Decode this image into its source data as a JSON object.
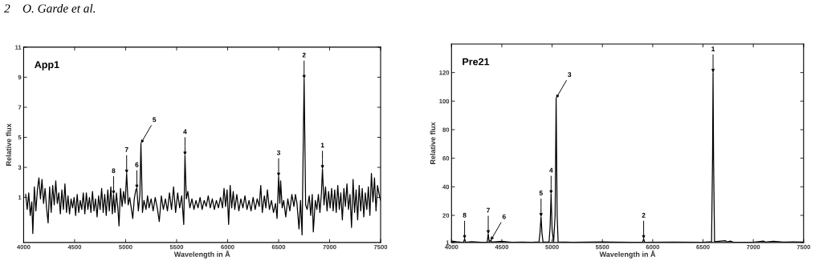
{
  "chart_data": [
    {
      "type": "line",
      "title": "App1",
      "xlabel": "Wavelength in Å",
      "ylabel": "Relative flux",
      "xlim": [
        4000,
        7500
      ],
      "ylim": [
        -2,
        11
      ],
      "xticks": [
        4000,
        4500,
        5000,
        5500,
        6000,
        6500,
        7000,
        7500
      ],
      "yticks": [
        1,
        3,
        5,
        7,
        9,
        11
      ],
      "x": [
        4020,
        4035,
        4050,
        4065,
        4080,
        4090,
        4105,
        4120,
        4135,
        4150,
        4165,
        4180,
        4195,
        4210,
        4225,
        4240,
        4255,
        4270,
        4285,
        4300,
        4315,
        4330,
        4345,
        4360,
        4375,
        4390,
        4405,
        4420,
        4435,
        4450,
        4465,
        4480,
        4495,
        4510,
        4525,
        4540,
        4555,
        4570,
        4585,
        4600,
        4615,
        4630,
        4645,
        4660,
        4675,
        4690,
        4705,
        4720,
        4735,
        4750,
        4765,
        4780,
        4795,
        4810,
        4825,
        4840,
        4855,
        4870,
        4882,
        4895,
        4910,
        4925,
        4935,
        4950,
        4965,
        4980,
        4995,
        5010,
        5025,
        5040,
        5055,
        5070,
        5085,
        5100,
        5110,
        5125,
        5140,
        5150,
        5165,
        5180,
        5200,
        5215,
        5230,
        5250,
        5270,
        5290,
        5310,
        5330,
        5350,
        5370,
        5390,
        5410,
        5430,
        5450,
        5470,
        5490,
        5510,
        5530,
        5550,
        5570,
        5582,
        5595,
        5610,
        5630,
        5650,
        5670,
        5690,
        5710,
        5730,
        5750,
        5770,
        5790,
        5810,
        5830,
        5850,
        5870,
        5890,
        5910,
        5930,
        5950,
        5965,
        5980,
        5995,
        6010,
        6025,
        6040,
        6055,
        6070,
        6090,
        6110,
        6130,
        6150,
        6170,
        6190,
        6210,
        6230,
        6250,
        6270,
        6290,
        6310,
        6325,
        6340,
        6360,
        6375,
        6390,
        6410,
        6430,
        6450,
        6470,
        6485,
        6500,
        6512,
        6520,
        6535,
        6550,
        6570,
        6590,
        6610,
        6630,
        6650,
        6665,
        6680,
        6700,
        6715,
        6730,
        6750,
        6765,
        6780,
        6800,
        6815,
        6830,
        6840,
        6860,
        6875,
        6890,
        6905,
        6920,
        6930,
        6945,
        6960,
        6975,
        6990,
        7005,
        7020,
        7035,
        7050,
        7065,
        7080,
        7095,
        7110,
        7125,
        7140,
        7155,
        7170,
        7185,
        7200,
        7215,
        7230,
        7245,
        7260,
        7275,
        7290,
        7305,
        7320,
        7335,
        7350,
        7365,
        7380,
        7395,
        7410,
        7425,
        7440,
        7455,
        7470,
        7485,
        7500
      ],
      "series": [
        {
          "color": "#000000",
          "values": [
            1.2,
            0.2,
            1.3,
            -0.2,
            0.7,
            -1.4,
            1.7,
            0.1,
            1.5,
            2.3,
            0.9,
            2.2,
            0.6,
            1.6,
            0.3,
            -0.7,
            1.7,
            0.0,
            1.8,
            0.5,
            2.1,
            0.6,
            1.3,
            -0.1,
            1.5,
            0.2,
            1.9,
            0.0,
            1.1,
            -0.1,
            0.9,
            0.3,
            1.0,
            -0.2,
            1.2,
            0.0,
            0.8,
            0.2,
            1.3,
            -0.1,
            1.3,
            0.2,
            1.0,
            0.0,
            1.4,
            0.1,
            0.9,
            -0.3,
            1.1,
            0.2,
            1.6,
            0.0,
            1.2,
            -0.2,
            1.5,
            0.1,
            1.7,
            -0.1,
            1.2,
            0.0,
            1.3,
            0.2,
            -0.9,
            1.6,
            0.4,
            1.4,
            0.6,
            2.6,
            0.5,
            1.0,
            0.3,
            -0.4,
            0.9,
            1.5,
            1.6,
            0.1,
            1.2,
            4.6,
            0.0,
            0.8,
            0.2,
            1.1,
            0.3,
            0.9,
            0.1,
            1.0,
            0.3,
            -0.6,
            1.1,
            0.2,
            0.9,
            0.1,
            1.3,
            0.2,
            1.7,
            0.0,
            1.3,
            0.3,
            1.1,
            -0.8,
            3.8,
            0.9,
            1.4,
            0.3,
            0.9,
            0.2,
            0.8,
            0.3,
            1.0,
            0.2,
            0.8,
            0.4,
            1.1,
            0.3,
            0.9,
            0.2,
            0.8,
            0.3,
            1.0,
            0.3,
            1.6,
            0.4,
            1.5,
            -0.8,
            1.8,
            0.3,
            1.4,
            0.2,
            1.2,
            0.1,
            0.9,
            0.3,
            1.1,
            0.2,
            0.8,
            0.1,
            1.0,
            0.2,
            0.9,
            0.4,
            1.8,
            0.0,
            1.1,
            0.3,
            1.5,
            0.2,
            0.8,
            0.0,
            0.6,
            -0.4,
            2.4,
            0.6,
            2.1,
            0.3,
            0.8,
            -0.3,
            0.9,
            0.1,
            1.2,
            0.4,
            1.2,
            0.6,
            -1.1,
            0.8,
            -1.5,
            8.9,
            0.5,
            0.2,
            1.1,
            -0.2,
            1.2,
            -1.3,
            0.8,
            0.2,
            1.2,
            0.0,
            1.3,
            2.9,
            0.5,
            1.7,
            0.1,
            1.4,
            0.3,
            1.6,
            0.1,
            1.5,
            0.0,
            1.8,
            0.2,
            1.3,
            -0.5,
            1.6,
            0.4,
            1.9,
            0.2,
            1.2,
            -1.0,
            2.2,
            0.0,
            1.5,
            -0.5,
            1.8,
            0.1,
            1.6,
            -0.3,
            1.3,
            0.2,
            1.7,
            -0.2,
            2.6,
            0.7,
            2.3,
            0.1,
            1.8,
            1.2,
            0.8
          ]
        }
      ],
      "annotations": [
        "2    O. Garde et al.",
        {
          "text": "8",
          "x": 4882,
          "y": 1.2
        },
        {
          "text": "7",
          "x": 5010,
          "y": 2.6
        },
        {
          "text": "6",
          "x": 5110,
          "y": 1.6
        },
        {
          "text": "5",
          "x": 5150,
          "y": 4.6
        },
        {
          "text": "4",
          "x": 5582,
          "y": 3.8
        },
        {
          "text": "3",
          "x": 6500,
          "y": 2.4
        },
        {
          "text": "2",
          "x": 6750,
          "y": 8.9
        },
        {
          "text": "1",
          "x": 6930,
          "y": 2.9
        }
      ]
    },
    {
      "type": "line",
      "title": "Pre21",
      "xlabel": "Wavelength in Å",
      "ylabel": "Relative flux",
      "xlim": [
        4000,
        7500
      ],
      "ylim": [
        1,
        140
      ],
      "xticks": [
        4000,
        4500,
        5000,
        5500,
        6000,
        6500,
        7000,
        7500
      ],
      "yticks": [
        1,
        20,
        40,
        60,
        80,
        100,
        120
      ],
      "x": [
        4000,
        4050,
        4100,
        4120,
        4130,
        4140,
        4200,
        4300,
        4355,
        4365,
        4375,
        4390,
        4400,
        4500,
        4600,
        4700,
        4800,
        4870,
        4880,
        4890,
        4900,
        4910,
        4970,
        4980,
        4990,
        5000,
        5015,
        5030,
        5040,
        5050,
        5060,
        5200,
        5500,
        5800,
        5900,
        5910,
        5920,
        6200,
        6500,
        6585,
        6595,
        6600,
        6605,
        6615,
        6720,
        6740,
        6770,
        6800,
        7000,
        7100,
        7120,
        7200,
        7300,
        7400,
        7500
      ],
      "series": [
        {
          "color": "#000000",
          "values": [
            2,
            1.5,
            1.2,
            1.3,
            3.5,
            1.2,
            1.5,
            1.2,
            1.3,
            7,
            1.4,
            2.5,
            1.3,
            1.8,
            1.2,
            1.3,
            1.2,
            1.4,
            8,
            19,
            7,
            1.3,
            1.3,
            12,
            35,
            10,
            1.4,
            20,
            102,
            20,
            1.4,
            1.2,
            1.4,
            1.2,
            1.3,
            3.5,
            1.2,
            1.3,
            1.2,
            1.5,
            60,
            120,
            60,
            1.5,
            2.3,
            1.3,
            2.0,
            1.3,
            1.2,
            2.0,
            1.3,
            1.8,
            1.3,
            1.4,
            1.3
          ]
        }
      ],
      "annotations": [
        {
          "text": "8",
          "x": 4130,
          "y": 3.5
        },
        {
          "text": "7",
          "x": 4365,
          "y": 7
        },
        {
          "text": "6",
          "x": 4390,
          "y": 2.5
        },
        {
          "text": "5",
          "x": 4890,
          "y": 19
        },
        {
          "text": "4",
          "x": 4990,
          "y": 35
        },
        {
          "text": "3",
          "x": 5040,
          "y": 102
        },
        {
          "text": "2",
          "x": 5910,
          "y": 3.5
        },
        {
          "text": "1",
          "x": 6600,
          "y": 120
        }
      ]
    }
  ]
}
